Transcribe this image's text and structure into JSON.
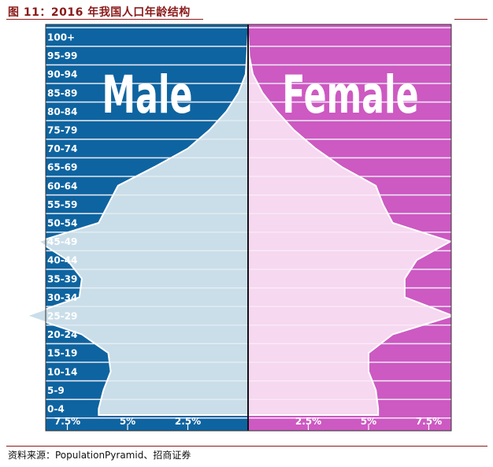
{
  "figure": {
    "title": "图  11：2016 年我国人口年龄结构",
    "source": "资料来源：PopulationPyramid、招商证券"
  },
  "chart_data": {
    "type": "area",
    "title": "",
    "male_label": "Male",
    "female_label": "Female",
    "age_groups": [
      "0-4",
      "5-9",
      "10-14",
      "15-19",
      "20-24",
      "25-29",
      "30-34",
      "35-39",
      "40-44",
      "45-49",
      "50-54",
      "55-59",
      "60-64",
      "65-69",
      "70-74",
      "75-79",
      "80-84",
      "85-89",
      "90-94",
      "95-99",
      "100+"
    ],
    "series": [
      {
        "name": "Male",
        "values": [
          6.2,
          6.0,
          5.7,
          5.8,
          6.9,
          9.2,
          7.0,
          6.9,
          7.5,
          8.7,
          6.2,
          5.8,
          5.4,
          3.9,
          2.5,
          1.6,
          0.9,
          0.4,
          0.1,
          0.05,
          0.01
        ]
      },
      {
        "name": "Female",
        "values": [
          5.4,
          5.3,
          5.0,
          5.0,
          6.0,
          8.5,
          6.5,
          6.5,
          7.0,
          8.4,
          6.0,
          5.6,
          5.3,
          3.9,
          2.8,
          1.9,
          1.2,
          0.6,
          0.2,
          0.05,
          0.01
        ]
      }
    ],
    "x_ticks_male": [
      "7.5%",
      "5%",
      "2.5%"
    ],
    "x_ticks_female": [
      "2.5%",
      "5%",
      "7.5%"
    ],
    "xlim": [
      -8.4,
      8.4
    ],
    "colors": {
      "male_bg": "#0e64a0",
      "female_bg": "#cd59c2",
      "male_fill": "#cadee9",
      "female_fill": "#f6d8f0",
      "center_line": "#111111",
      "grid": "#e6e0f0"
    }
  }
}
